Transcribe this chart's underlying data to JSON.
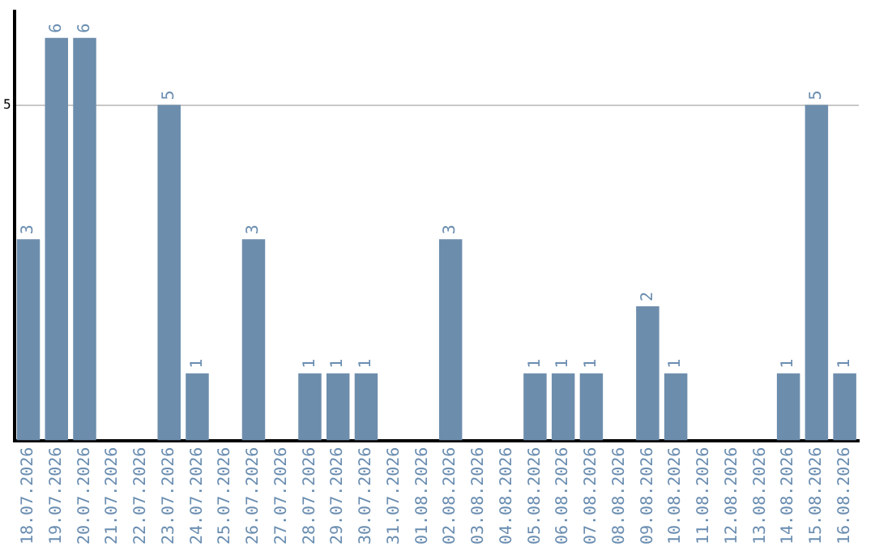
{
  "chart_data": {
    "type": "bar",
    "categories": [
      "18.07.2026",
      "19.07.2026",
      "20.07.2026",
      "21.07.2026",
      "22.07.2026",
      "23.07.2026",
      "24.07.2026",
      "25.07.2026",
      "26.07.2026",
      "27.07.2026",
      "28.07.2026",
      "29.07.2026",
      "30.07.2026",
      "31.07.2026",
      "01.08.2026",
      "02.08.2026",
      "03.08.2026",
      "04.08.2026",
      "05.08.2026",
      "06.08.2026",
      "07.08.2026",
      "08.08.2026",
      "09.08.2026",
      "10.08.2026",
      "11.08.2026",
      "12.08.2026",
      "13.08.2026",
      "14.08.2026",
      "15.08.2026",
      "16.08.2026"
    ],
    "values": [
      3,
      6,
      6,
      0,
      0,
      5,
      1,
      0,
      3,
      0,
      1,
      1,
      1,
      0,
      0,
      3,
      0,
      0,
      1,
      1,
      1,
      0,
      2,
      1,
      0,
      0,
      0,
      1,
      5,
      1
    ],
    "value_labels": [
      "3",
      "6",
      "6",
      null,
      null,
      "5",
      "1",
      null,
      "3",
      null,
      "1",
      "1",
      "1",
      null,
      null,
      "3",
      null,
      null,
      "1",
      "1",
      "1",
      null,
      "2",
      "1",
      null,
      null,
      null,
      "1",
      "5",
      "1"
    ],
    "color": "#6d8dac",
    "ylim": [
      0,
      6.4
    ],
    "yticks": [
      5
    ],
    "grid": "y",
    "legend": false
  }
}
